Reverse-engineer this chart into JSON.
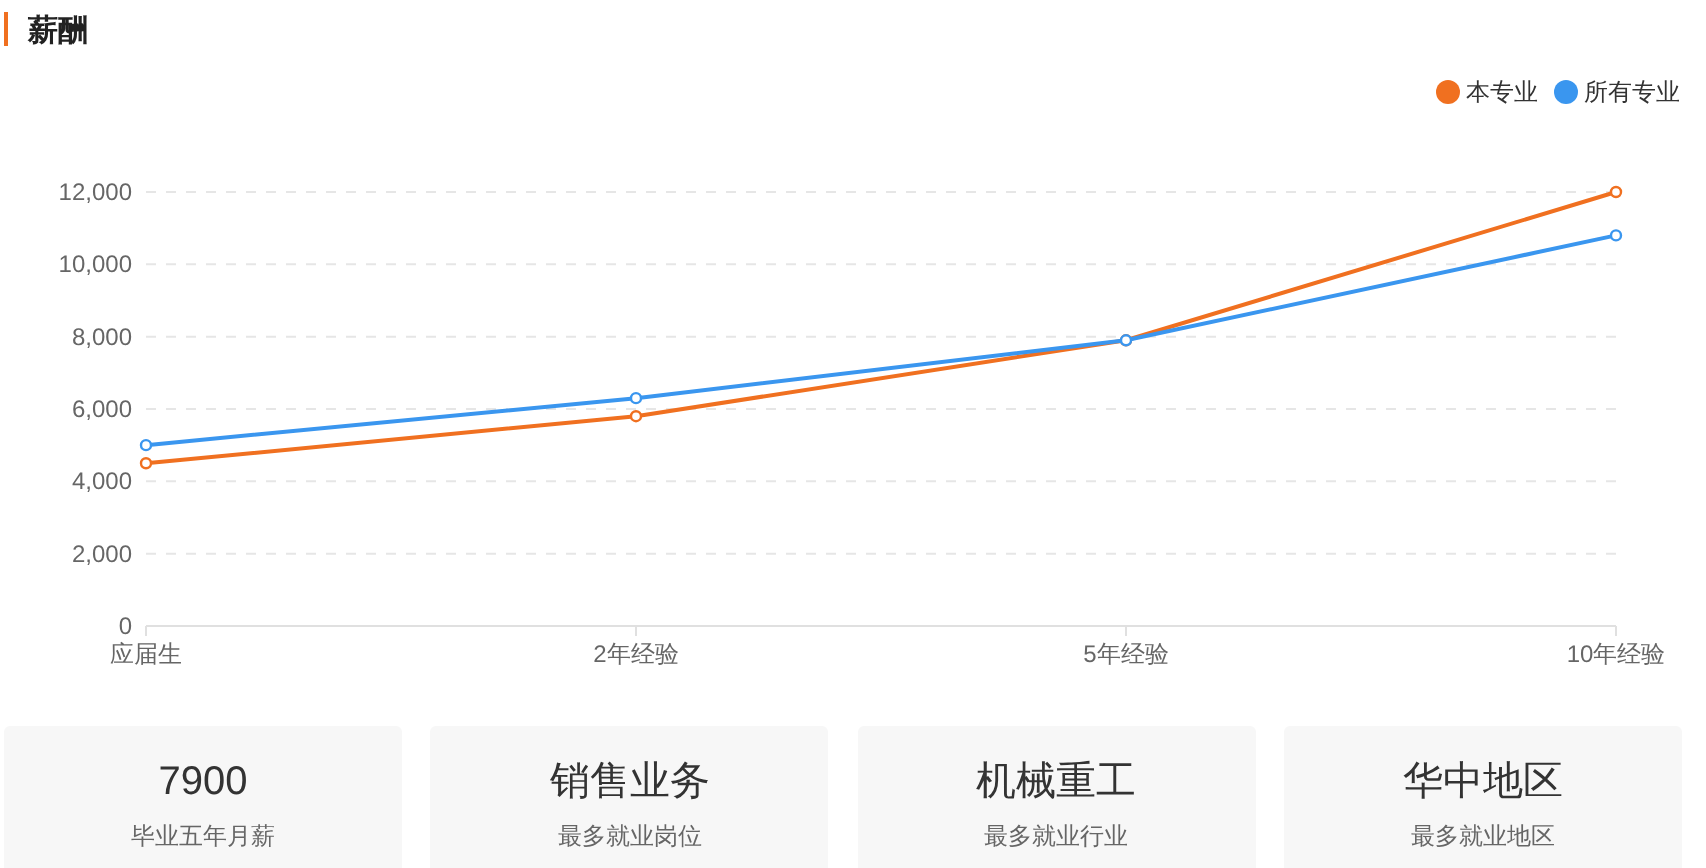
{
  "chart_data": [
    {
      "type": "line",
      "title": "薪酬",
      "categories": [
        "应届生",
        "2年经验",
        "5年经验",
        "10年经验"
      ],
      "series": [
        {
          "name": "本专业",
          "color": "#f07020",
          "values": [
            4500,
            5800,
            7900,
            12000
          ]
        },
        {
          "name": "所有专业",
          "color": "#3a96ef",
          "values": [
            5000,
            6300,
            7900,
            10800
          ]
        }
      ],
      "ylim": [
        0,
        12000
      ],
      "yticks": [
        0,
        {
          "value": 2000,
          "label": "2,000"
        },
        {
          "value": 4000,
          "label": "4,000"
        },
        {
          "value": 6000,
          "label": "6,000"
        },
        {
          "value": 8000,
          "label": "8,000"
        },
        {
          "value": 10000,
          "label": "10,000"
        },
        {
          "value": 12000,
          "label": "12,000"
        }
      ],
      "grid": "y",
      "legend": "top right",
      "marker": "circle"
    },
    {
      "type": "other",
      "title": "7900",
      "subtitle": "毕业五年月薪"
    },
    {
      "type": "other",
      "title": "销售业务",
      "subtitle": "最多就业岗位"
    },
    {
      "type": "other",
      "title": "机械重工",
      "subtitle": "最多就业行业"
    },
    {
      "type": "other",
      "title": "华中地区",
      "subtitle": "最多就业地区"
    }
  ]
}
